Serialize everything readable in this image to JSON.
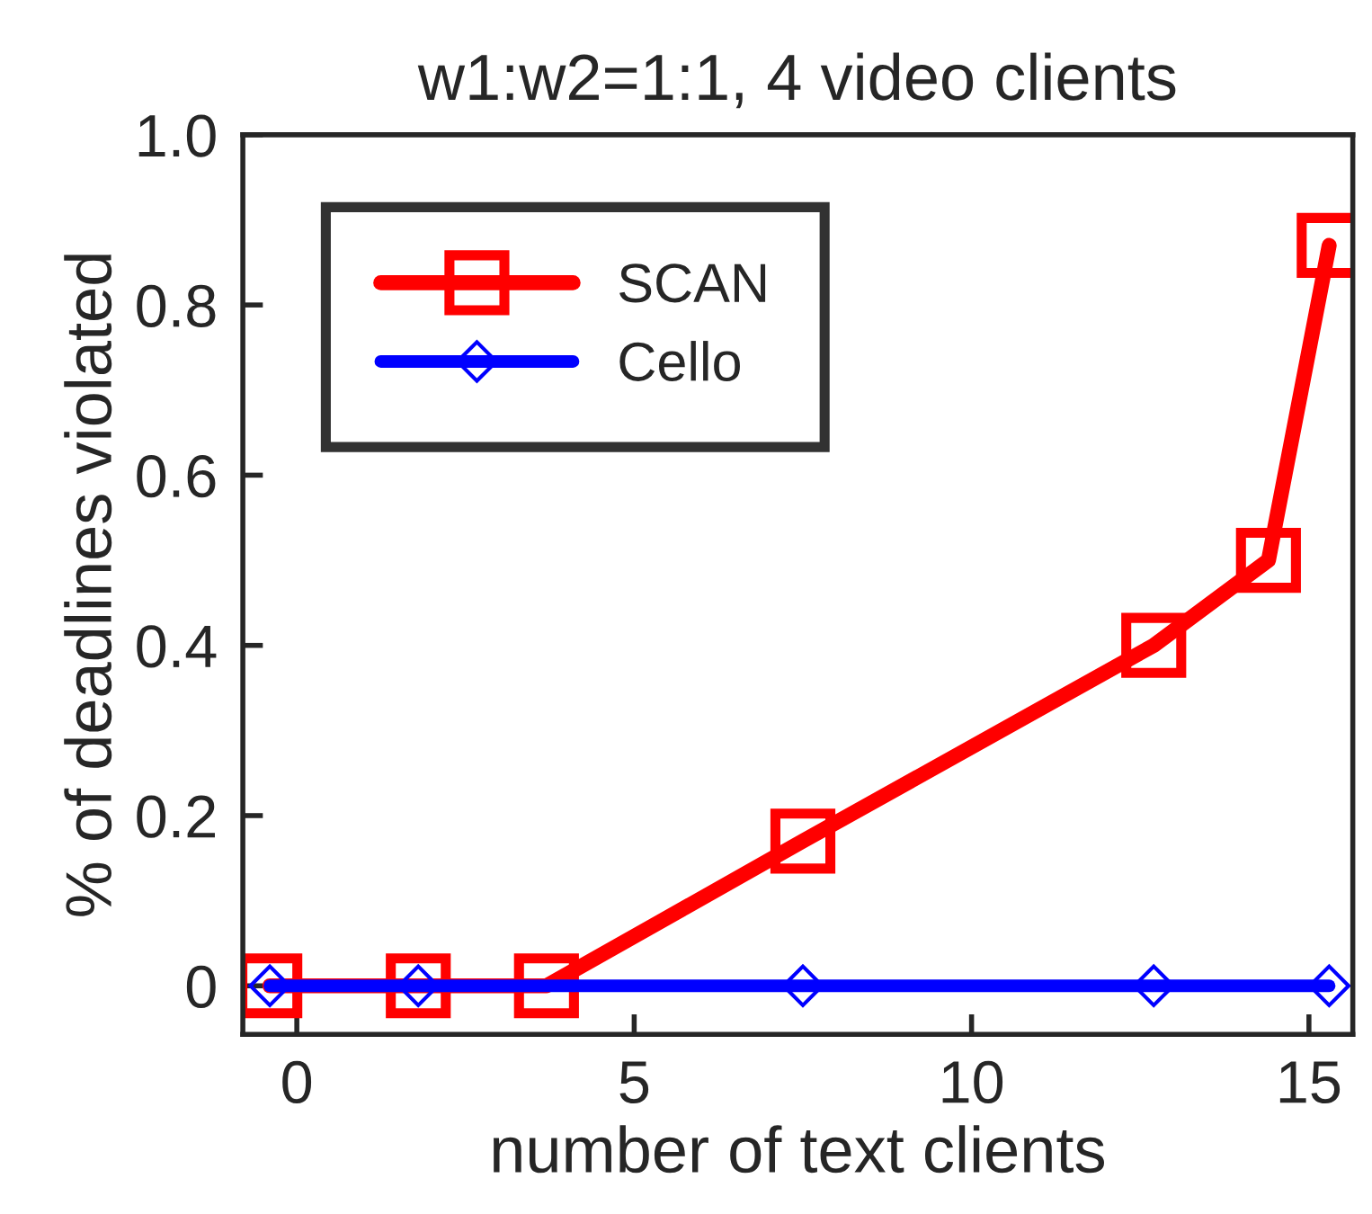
{
  "chart_data": {
    "type": "line",
    "title": "w1:w2=1:1, 4 video clients",
    "xlabel": "number of text clients",
    "ylabel": "% of deadlines violated",
    "series": [
      {
        "name": "SCAN",
        "color": "#ff0000",
        "marker": "square",
        "x": [
          -0.4,
          1.8,
          3.7,
          7.5,
          12.7,
          14.4,
          15.3
        ],
        "values": [
          0,
          0,
          0,
          0.17,
          0.4,
          0.5,
          0.87
        ]
      },
      {
        "name": "Cello",
        "color": "#0000ff",
        "marker": "diamond",
        "x": [
          -0.4,
          1.8,
          7.5,
          12.7,
          15.3
        ],
        "values": [
          0,
          0,
          0,
          0,
          0
        ]
      }
    ],
    "xlim": [
      -0.8,
      15.65
    ],
    "xticks": [
      0,
      5,
      10,
      15
    ],
    "ylim": [
      -0.057,
      1.0
    ],
    "yticks": [
      0,
      0.2,
      0.4,
      0.6,
      0.8,
      {
        "value": 1,
        "label": "1.0"
      }
    ],
    "grid": false,
    "legend": "top left",
    "line_style": "solid"
  }
}
